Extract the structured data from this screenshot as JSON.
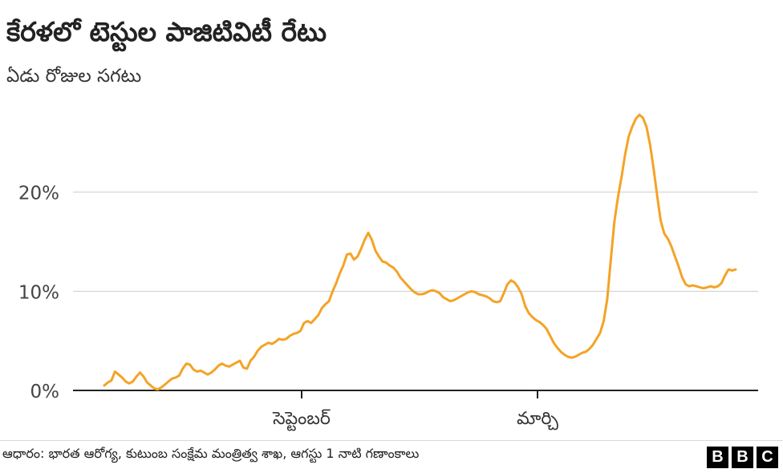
{
  "title": "కేరళలో టెస్టుల పాజిటివిటీ రేటు",
  "subtitle": "ఏడు రోజుల సగటు",
  "source": "ఆధారం: భారత ఆరోగ్య, కుటుంబ సంక్షేమ మంత్రిత్వ శాఖ, ఆగస్టు 1 నాటి గణాంకాలు",
  "logo_letters": [
    "B",
    "B",
    "C"
  ],
  "colors": {
    "line": "#f4a326",
    "grid": "#cccccc",
    "axis": "#222222"
  },
  "chart_data": {
    "type": "line",
    "title": "కేరళలో టెస్టుల పాజిటివిటీ రేటు",
    "subtitle": "ఏడు రోజుల సగటు",
    "xlabel": "",
    "ylabel": "",
    "x_ticks": [
      "సెప్టెంబర్",
      "మార్చి"
    ],
    "y_ticks": [
      "0%",
      "10%",
      "20%"
    ],
    "ylim": [
      0,
      30
    ],
    "grid": true,
    "series": [
      {
        "values": [
          0.5,
          0.8,
          1.0,
          1.9,
          1.6,
          1.3,
          0.9,
          0.7,
          0.9,
          1.4,
          1.8,
          1.4,
          0.8,
          0.5,
          0.2,
          0.1,
          0.3,
          0.6,
          0.9,
          1.2,
          1.3,
          1.5,
          2.2,
          2.7,
          2.6,
          2.1,
          1.9,
          2.0,
          1.8,
          1.6,
          1.8,
          2.1,
          2.5,
          2.7,
          2.5,
          2.4,
          2.6,
          2.8,
          3.0,
          2.3,
          2.2,
          3.0,
          3.4,
          4.0,
          4.4,
          4.6,
          4.8,
          4.7,
          4.9,
          5.2,
          5.1,
          5.2,
          5.5,
          5.7,
          5.8,
          6.0,
          6.8,
          7.0,
          6.8,
          7.2,
          7.6,
          8.3,
          8.7,
          9.0,
          10.0,
          10.8,
          11.8,
          12.6,
          13.7,
          13.8,
          13.2,
          13.5,
          14.3,
          15.2,
          15.9,
          15.2,
          14.1,
          13.5,
          13.0,
          12.9,
          12.6,
          12.4,
          12.0,
          11.4,
          11.0,
          10.6,
          10.2,
          9.9,
          9.7,
          9.7,
          9.8,
          10.0,
          10.1,
          10.0,
          9.8,
          9.4,
          9.2,
          9.0,
          9.1,
          9.3,
          9.5,
          9.7,
          9.9,
          10.0,
          9.9,
          9.7,
          9.6,
          9.5,
          9.3,
          9.0,
          8.9,
          9.0,
          9.8,
          10.7,
          11.1,
          10.9,
          10.4,
          9.7,
          8.5,
          7.8,
          7.4,
          7.1,
          6.9,
          6.6,
          6.2,
          5.5,
          4.8,
          4.3,
          3.9,
          3.6,
          3.4,
          3.3,
          3.4,
          3.6,
          3.8,
          3.9,
          4.2,
          4.6,
          5.2,
          5.8,
          7.0,
          9.2,
          13.2,
          17.0,
          19.5,
          21.5,
          23.8,
          25.6,
          26.6,
          27.4,
          27.8,
          27.5,
          26.6,
          24.8,
          22.4,
          19.6,
          17.1,
          15.8,
          15.3,
          14.5,
          13.5,
          12.5,
          11.4,
          10.7,
          10.5,
          10.6,
          10.5,
          10.4,
          10.3,
          10.4,
          10.5,
          10.4,
          10.5,
          10.8,
          11.6,
          12.2,
          12.1,
          12.2
        ]
      }
    ]
  }
}
